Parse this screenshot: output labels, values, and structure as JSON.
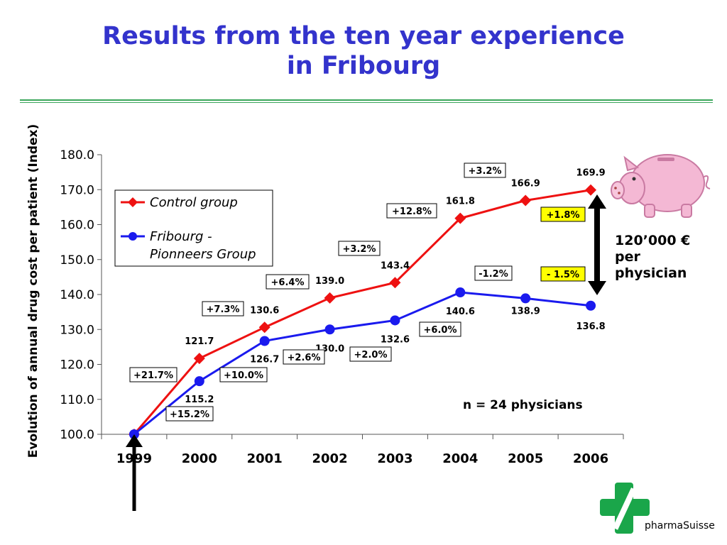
{
  "title_lines": [
    "Results from the ten year experience",
    "in Fribourg"
  ],
  "savings_note": [
    "120’000 €",
    "per",
    "physician"
  ],
  "sample_size": "n = 24 physicians",
  "brand": "pharmaSuisse",
  "icons": {
    "savings": "piggy-bank-icon",
    "logo": "pharmacy-cross-icon",
    "start_marker": "up-arrow-icon",
    "gap_marker": "double-headed-arrow-icon"
  },
  "colors": {
    "title": "#3333cc",
    "control": "#ee1111",
    "fribourg": "#1a1aee",
    "rule": "#3aa65a",
    "highlight_box": "#ffff00",
    "logo": "#1aa64a"
  },
  "chart_data": {
    "type": "line",
    "categories": [
      "1999",
      "2000",
      "2001",
      "2002",
      "2003",
      "2004",
      "2005",
      "2006"
    ],
    "ylabel": "Evolution of annual drug cost per patient (Index)",
    "ylim": [
      100,
      180
    ],
    "yticks": [
      "100.0",
      "110.0",
      "120.0",
      "130.0",
      "140.0",
      "150.0",
      "160.0",
      "170.0",
      "180.0"
    ],
    "series": [
      {
        "name": "Control group",
        "values": [
          100.0,
          121.7,
          130.6,
          139.0,
          143.4,
          161.8,
          166.9,
          169.9
        ],
        "labels": [
          "",
          "121.7",
          "130.6",
          "139.0",
          "143.4",
          "161.8",
          "166.9",
          "169.9"
        ],
        "changes": [
          "+21.7%",
          "+7.3%",
          "+6.4%",
          "+3.2%",
          "+12.8%",
          "+3.2%",
          "+1.8%"
        ]
      },
      {
        "name": "Fribourg - Pionneers Group",
        "values": [
          100.0,
          115.2,
          126.7,
          130.0,
          132.6,
          140.6,
          138.9,
          136.8
        ],
        "labels": [
          "",
          "115.2",
          "126.7",
          "130.0",
          "132.6",
          "140.6",
          "138.9",
          "136.8"
        ],
        "changes": [
          "+15.2%",
          "+10.0%",
          "+2.6%",
          "+2.0%",
          "+6.0%",
          "-1.2%",
          "- 1.5%"
        ]
      }
    ],
    "legend": [
      "Control group",
      "Fribourg -",
      "Pionneers Group"
    ],
    "legend_position": "top-left",
    "grid": false
  }
}
